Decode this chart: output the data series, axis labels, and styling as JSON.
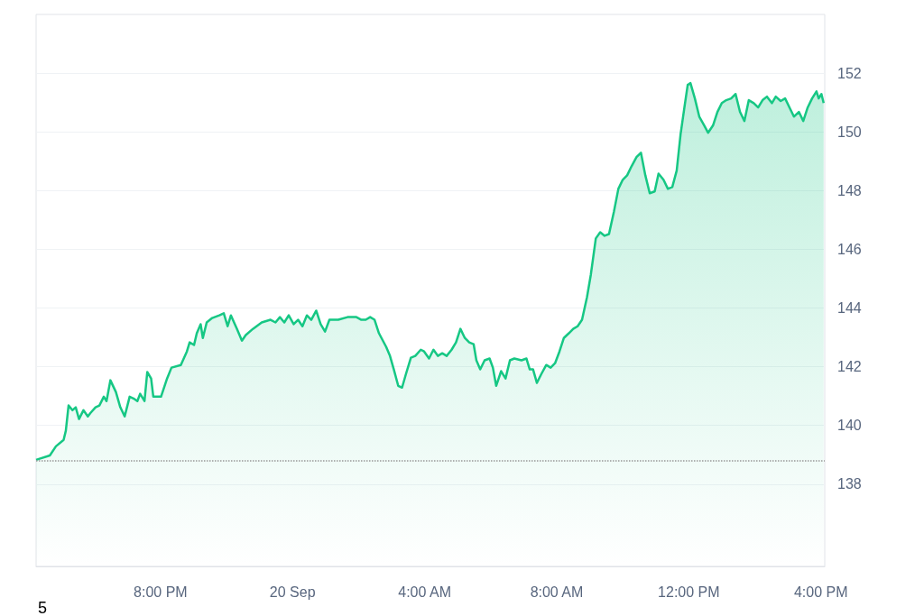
{
  "chart_data": {
    "type": "area",
    "x": [
      "--09-19T16:14",
      "--09-19T16:39",
      "--09-19T16:50",
      "--09-19T17:04",
      "--09-19T17:08",
      "--09-19T17:13",
      "--09-19T17:20",
      "--09-19T17:26",
      "--09-19T17:32",
      "--09-19T17:40",
      "--09-19T17:48",
      "--09-19T17:53",
      "--09-19T18:02",
      "--09-19T18:09",
      "--09-19T18:17",
      "--09-19T18:22",
      "--09-19T18:29",
      "--09-19T18:39",
      "--09-19T18:47",
      "--09-19T18:55",
      "--09-19T19:04",
      "--09-19T19:11",
      "--09-19T19:18",
      "--09-19T19:23",
      "--09-19T19:31",
      "--09-19T19:36",
      "--09-19T19:43",
      "--09-19T19:47",
      "--09-19T20:01",
      "--09-19T20:12",
      "--09-19T20:20",
      "--09-19T20:37",
      "--09-19T20:48",
      "--09-19T20:53",
      "--09-19T21:01",
      "--09-19T21:06",
      "--09-19T21:13",
      "--09-19T21:17",
      "--09-19T21:24",
      "--09-19T21:34",
      "--09-19T21:47",
      "--09-19T21:55",
      "--09-19T22:02",
      "--09-19T22:08",
      "--09-19T22:19",
      "--09-19T22:28",
      "--09-19T22:35",
      "--09-19T22:48",
      "--09-19T23:04",
      "--09-19T23:20",
      "--09-19T23:29",
      "--09-19T23:37",
      "--09-19T23:45",
      "--09-19T23:53",
      "--09-20T00:02",
      "--09-20T00:10",
      "--09-20T00:18",
      "--09-20T00:26",
      "--09-20T00:34",
      "--09-20T00:43",
      "--09-20T00:51",
      "--09-20T00:59",
      "--09-20T01:07",
      "--09-20T01:23",
      "--09-20T01:40",
      "--09-20T01:56",
      "--09-20T02:05",
      "--09-20T02:13",
      "--09-20T02:21",
      "--09-20T02:29",
      "--09-20T02:37",
      "--09-20T02:50",
      "--09-20T02:57",
      "--09-20T03:04",
      "--09-20T03:12",
      "--09-20T03:19",
      "--09-20T03:26",
      "--09-20T03:35",
      "--09-20T03:43",
      "--09-20T03:53",
      "--09-20T03:59",
      "--09-20T04:08",
      "--09-20T04:16",
      "--09-20T04:24",
      "--09-20T04:32",
      "--09-20T04:40",
      "--09-20T04:49",
      "--09-20T04:57",
      "--09-20T05:05",
      "--09-20T05:13",
      "--09-20T05:21",
      "--09-20T05:29",
      "--09-20T05:34",
      "--09-20T05:41",
      "--09-20T05:49",
      "--09-20T05:58",
      "--09-20T06:04",
      "--09-20T06:10",
      "--09-20T06:19",
      "--09-20T06:27",
      "--09-20T06:35",
      "--09-20T06:43",
      "--09-20T06:56",
      "--09-20T07:05",
      "--09-20T07:11",
      "--09-20T07:17",
      "--09-20T07:24",
      "--09-20T07:32",
      "--09-20T07:41",
      "--09-20T07:49",
      "--09-20T07:57",
      "--09-20T08:05",
      "--09-20T08:13",
      "--09-20T08:22",
      "--09-20T08:30",
      "--09-20T08:38",
      "--09-20T08:46",
      "--09-20T08:55",
      "--09-20T09:02",
      "--09-20T09:11",
      "--09-20T09:19",
      "--09-20T09:27",
      "--09-20T09:35",
      "--09-20T09:44",
      "--09-20T09:52",
      "--09-20T10:00",
      "--09-20T10:08",
      "--09-20T10:16",
      "--09-20T10:25",
      "--09-20T10:33",
      "--09-20T10:41",
      "--09-20T10:49",
      "--09-20T10:58",
      "--09-20T11:05",
      "--09-20T11:14",
      "--09-20T11:22",
      "--09-20T11:30",
      "--09-20T11:38",
      "--09-20T11:45",
      "--09-20T11:52",
      "--09-20T11:58",
      "--09-20T12:03",
      "--09-20T12:11",
      "--09-20T12:19",
      "--09-20T12:28",
      "--09-20T12:35",
      "--09-20T12:44",
      "--09-20T12:52",
      "--09-20T13:00",
      "--09-20T13:08",
      "--09-20T13:17",
      "--09-20T13:25",
      "--09-20T13:33",
      "--09-20T13:41",
      "--09-20T13:49",
      "--09-20T13:58",
      "--09-20T14:06",
      "--09-20T14:14",
      "--09-20T14:22",
      "--09-20T14:31",
      "--09-20T14:38",
      "--09-20T14:47",
      "--09-20T14:55",
      "--09-20T15:03",
      "--09-20T15:11",
      "--09-20T15:20",
      "--09-20T15:28",
      "--09-20T15:36",
      "--09-20T15:44",
      "--09-20T15:52",
      "--09-20T15:56",
      "--09-20T16:01",
      "--09-20T16:05"
    ],
    "series": [
      {
        "color": "#16c784",
        "values": [
          138.83,
          138.98,
          139.29,
          139.51,
          139.82,
          140.68,
          140.52,
          140.62,
          140.22,
          140.52,
          140.31,
          140.43,
          140.62,
          140.68,
          140.98,
          140.83,
          141.54,
          141.14,
          140.62,
          140.31,
          140.98,
          140.92,
          140.83,
          141.08,
          140.83,
          141.82,
          141.6,
          140.98,
          140.98,
          141.6,
          141.97,
          142.06,
          142.52,
          142.83,
          142.74,
          143.14,
          143.45,
          142.98,
          143.51,
          143.66,
          143.75,
          143.82,
          143.38,
          143.75,
          143.29,
          142.89,
          143.08,
          143.29,
          143.51,
          143.6,
          143.51,
          143.69,
          143.51,
          143.75,
          143.45,
          143.6,
          143.38,
          143.75,
          143.6,
          143.91,
          143.45,
          143.2,
          143.6,
          143.6,
          143.69,
          143.69,
          143.6,
          143.6,
          143.69,
          143.6,
          143.14,
          142.68,
          142.37,
          141.91,
          141.35,
          141.29,
          141.75,
          142.31,
          142.37,
          142.58,
          142.52,
          142.28,
          142.58,
          142.37,
          142.46,
          142.37,
          142.58,
          142.83,
          143.29,
          142.98,
          142.83,
          142.77,
          142.22,
          141.91,
          142.22,
          142.28,
          141.97,
          141.35,
          141.85,
          141.6,
          142.22,
          142.28,
          142.22,
          142.28,
          141.91,
          141.91,
          141.45,
          141.75,
          142.06,
          141.97,
          142.12,
          142.52,
          142.98,
          143.14,
          143.29,
          143.38,
          143.6,
          144.37,
          145.14,
          146.37,
          146.58,
          146.46,
          146.52,
          147.29,
          148.06,
          148.37,
          148.52,
          148.83,
          149.14,
          149.29,
          148.52,
          147.91,
          147.97,
          148.58,
          148.37,
          148.06,
          148.12,
          148.68,
          149.91,
          150.83,
          151.6,
          151.66,
          151.14,
          150.52,
          150.22,
          149.97,
          150.22,
          150.68,
          150.98,
          151.08,
          151.14,
          151.29,
          150.68,
          150.37,
          151.08,
          150.98,
          150.83,
          151.08,
          151.2,
          150.98,
          151.2,
          151.05,
          151.14,
          150.83,
          150.52,
          150.68,
          150.37,
          150.83,
          151.14,
          151.38,
          151.14,
          151.29,
          150.98
        ]
      }
    ],
    "xlim": [
      "--09-19T16:14",
      "--09-20T16:07"
    ],
    "xticks": [
      {
        "value": "--09-19T20:00",
        "label": "8:00 PM"
      },
      {
        "value": "--09-20T00:00",
        "label": "20 Sep"
      },
      {
        "value": "--09-20T04:00",
        "label": "4:00 AM"
      },
      {
        "value": "--09-20T08:00",
        "label": "8:00 AM"
      },
      {
        "value": "--09-20T12:00",
        "label": "12:00 PM"
      },
      {
        "value": "--09-20T16:00",
        "label": "4:00 PM"
      }
    ],
    "ylim": [
      135.2,
      154
    ],
    "yticks": [
      138,
      140,
      142,
      144,
      146,
      148,
      150,
      152
    ],
    "ref_lines": [
      {
        "axis": "y",
        "value": 138.8,
        "color": "#999999",
        "line_style": "dotted"
      }
    ],
    "grid": "y",
    "marker": "none",
    "line_style": "solid",
    "annotations": [
      "5"
    ]
  }
}
